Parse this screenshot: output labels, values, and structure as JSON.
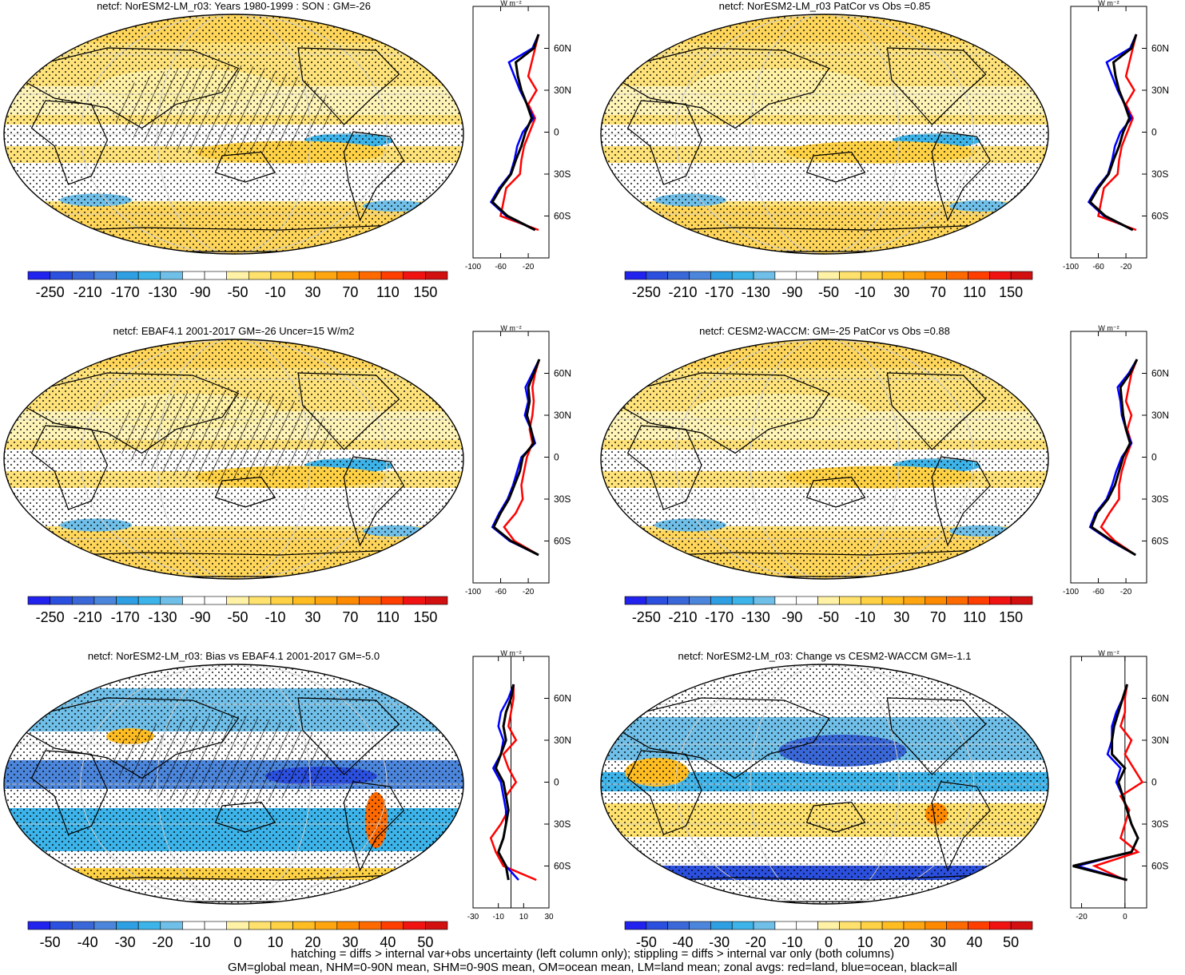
{
  "colors": {
    "land_zonal": "#ff0000",
    "ocean_zonal": "#0000ff",
    "all_zonal": "#000000",
    "coast": "#000000"
  },
  "palettes": {
    "full": [
      "#2222ee",
      "#2b4fdf",
      "#3a68d8",
      "#4c86dc",
      "#2f9fe3",
      "#3cb4ea",
      "#6fbfe8",
      "#ffffff",
      "#ffffff",
      "#fff2a6",
      "#ffe16e",
      "#ffd144",
      "#ffbd22",
      "#ffa510",
      "#ff8a00",
      "#ff6a00",
      "#ff3e00",
      "#f11212",
      "#d21010"
    ],
    "diff": [
      "#2222ee",
      "#2b4fdf",
      "#3a68d8",
      "#4c86dc",
      "#2f9fe3",
      "#3cb4ea",
      "#6fbfe8",
      "#ffffff",
      "#ffffff",
      "#fff2a6",
      "#ffe16e",
      "#ffd144",
      "#ffbd22",
      "#ffa510",
      "#ff8a00",
      "#ff6a00",
      "#ff3e00",
      "#f11212",
      "#d21010"
    ]
  },
  "panels": [
    {
      "id": "model",
      "title": "netcf: NorESM2-LM_r03: Years 1980-1999 : SON : GM=-26",
      "colorbar_labels": [
        "-250",
        "-210",
        "-170",
        "-130",
        "-90",
        "-50",
        "-10",
        "30",
        "70",
        "110",
        "150"
      ],
      "zonal_axis_ticks": [
        "-100",
        "-60",
        "-20"
      ],
      "zonal_xlim": [
        -100,
        10
      ],
      "lat_labels": [
        "60N",
        "30N",
        "0",
        "30S",
        "60S"
      ],
      "units": "W m⁻²",
      "hatched": true,
      "zonal_profiles": {
        "lat": [
          70,
          60,
          50,
          40,
          30,
          20,
          10,
          0,
          -10,
          -20,
          -30,
          -40,
          -50,
          -60,
          -70
        ],
        "all": [
          -5,
          -12,
          -38,
          -35,
          -30,
          -22,
          -15,
          -24,
          -30,
          -38,
          -45,
          -60,
          -72,
          -50,
          -10
        ],
        "ocean": [
          -5,
          -14,
          -48,
          -40,
          -32,
          -22,
          -12,
          -28,
          -36,
          -40,
          -46,
          -62,
          -74,
          -52,
          -10
        ],
        "land": [
          -5,
          -10,
          -15,
          -20,
          -8,
          -20,
          -10,
          -18,
          -26,
          -30,
          -32,
          -52,
          -56,
          -60,
          -5
        ]
      }
    },
    {
      "id": "model-right",
      "title": "netcf: NorESM2-LM_r03 PatCor vs Obs =0.85",
      "colorbar_labels": [
        "-250",
        "-210",
        "-170",
        "-130",
        "-90",
        "-50",
        "-10",
        "30",
        "70",
        "110",
        "150"
      ],
      "zonal_axis_ticks": [
        "-100",
        "-60",
        "-20"
      ],
      "zonal_xlim": [
        -100,
        10
      ],
      "lat_labels": [
        "60N",
        "30N",
        "0",
        "30S",
        "60S"
      ],
      "units": "W m⁻²",
      "hatched": false,
      "zonal_profiles": {
        "lat": [
          70,
          60,
          50,
          40,
          30,
          20,
          10,
          0,
          -10,
          -20,
          -30,
          -40,
          -50,
          -60,
          -70
        ],
        "all": [
          -5,
          -12,
          -38,
          -35,
          -30,
          -22,
          -15,
          -24,
          -30,
          -38,
          -45,
          -60,
          -72,
          -50,
          -10
        ],
        "ocean": [
          -5,
          -14,
          -48,
          -40,
          -32,
          -22,
          -12,
          -28,
          -36,
          -40,
          -46,
          -62,
          -74,
          -52,
          -10
        ],
        "land": [
          -5,
          -10,
          -15,
          -20,
          -8,
          -20,
          -10,
          -18,
          -26,
          -30,
          -32,
          -52,
          -56,
          -60,
          -5
        ]
      }
    },
    {
      "id": "obs",
      "title": "netcf: EBAF4.1 2001-2017 GM=-26 Uncer=15 W/m2",
      "colorbar_labels": [
        "-250",
        "-210",
        "-170",
        "-130",
        "-90",
        "-50",
        "-10",
        "30",
        "70",
        "110",
        "150"
      ],
      "zonal_axis_ticks": [
        "-100",
        "-60",
        "-20"
      ],
      "zonal_xlim": [
        -100,
        10
      ],
      "lat_labels": [
        "60N",
        "30N",
        "0",
        "30S",
        "60S"
      ],
      "units": "W m⁻²",
      "hatched": true,
      "zonal_profiles": {
        "lat": [
          70,
          60,
          50,
          40,
          30,
          20,
          10,
          0,
          -10,
          -20,
          -30,
          -40,
          -50,
          -60,
          -70
        ],
        "all": [
          -4,
          -12,
          -20,
          -18,
          -22,
          -16,
          -12,
          -28,
          -32,
          -40,
          -48,
          -60,
          -70,
          -45,
          -5
        ],
        "ocean": [
          -4,
          -14,
          -24,
          -20,
          -25,
          -16,
          -10,
          -30,
          -36,
          -42,
          -50,
          -62,
          -72,
          -47,
          -5
        ],
        "land": [
          -4,
          -10,
          -14,
          -12,
          -14,
          -18,
          -14,
          -22,
          -26,
          -30,
          -28,
          -38,
          -55,
          -40,
          -5
        ]
      }
    },
    {
      "id": "ref-model",
      "title": "netcf: CESM2-WACCM: GM=-25 PatCor vs Obs =0.88",
      "colorbar_labels": [
        "-250",
        "-210",
        "-170",
        "-130",
        "-90",
        "-50",
        "-10",
        "30",
        "70",
        "110",
        "150"
      ],
      "zonal_axis_ticks": [
        "-100",
        "-60",
        "-20"
      ],
      "zonal_xlim": [
        -100,
        10
      ],
      "lat_labels": [
        "60N",
        "30N",
        "0",
        "30S",
        "60S"
      ],
      "units": "W m⁻²",
      "hatched": false,
      "zonal_profiles": {
        "lat": [
          70,
          60,
          50,
          40,
          30,
          20,
          10,
          0,
          -10,
          -20,
          -30,
          -40,
          -50,
          -60,
          -70
        ],
        "all": [
          -4,
          -14,
          -28,
          -26,
          -24,
          -20,
          -14,
          -24,
          -30,
          -36,
          -46,
          -62,
          -70,
          -40,
          -6
        ],
        "ocean": [
          -4,
          -16,
          -32,
          -28,
          -26,
          -20,
          -12,
          -26,
          -34,
          -40,
          -48,
          -64,
          -72,
          -42,
          -6
        ],
        "land": [
          -4,
          -12,
          -16,
          -20,
          -12,
          -18,
          -12,
          -20,
          -26,
          -30,
          -30,
          -44,
          -56,
          -36,
          -6
        ]
      }
    },
    {
      "id": "bias",
      "title": "netcf: NorESM2-LM_r03: Bias vs EBAF4.1 2001-2017  GM=-5.0",
      "colorbar_labels": [
        "-50",
        "-40",
        "-30",
        "-20",
        "-10",
        "0",
        "10",
        "20",
        "30",
        "40",
        "50"
      ],
      "zonal_axis_ticks": [
        "-30",
        "-10",
        "10",
        "30"
      ],
      "zonal_xlim": [
        -30,
        30
      ],
      "lat_labels": [
        "60N",
        "30N",
        "0",
        "30S",
        "60S"
      ],
      "units": "W m⁻²",
      "hatched": true,
      "zonal_profiles": {
        "lat": [
          70,
          60,
          50,
          40,
          30,
          20,
          10,
          0,
          -10,
          -20,
          -30,
          -40,
          -50,
          -60,
          -70
        ],
        "all": [
          2,
          0,
          -4,
          -6,
          -4,
          -8,
          -12,
          -6,
          -4,
          -2,
          -4,
          -6,
          -10,
          -4,
          -2
        ],
        "ocean": [
          2,
          -2,
          -8,
          -10,
          -6,
          -8,
          -14,
          -8,
          -6,
          -4,
          -4,
          -6,
          -10,
          -4,
          6
        ],
        "land": [
          2,
          2,
          0,
          -2,
          4,
          -6,
          -2,
          4,
          -4,
          -2,
          -8,
          -16,
          -12,
          -6,
          20
        ]
      }
    },
    {
      "id": "change",
      "title": "netcf: NorESM2-LM_r03: Change vs CESM2-WACCM GM=-1.1",
      "colorbar_labels": [
        "-50",
        "-40",
        "-30",
        "-20",
        "-10",
        "0",
        "10",
        "20",
        "30",
        "40",
        "50"
      ],
      "zonal_axis_ticks": [
        "-20",
        "0"
      ],
      "zonal_xlim": [
        -25,
        10
      ],
      "lat_labels": [
        "60N",
        "30N",
        "0",
        "30S",
        "60S"
      ],
      "units": "W m⁻²",
      "hatched": false,
      "zonal_profiles": {
        "lat": [
          70,
          60,
          50,
          40,
          30,
          20,
          10,
          0,
          -10,
          -20,
          -30,
          -40,
          -50,
          -60,
          -70
        ],
        "all": [
          1,
          -1,
          -3,
          -5,
          -6,
          -6,
          0,
          -3,
          -1,
          1,
          3,
          6,
          3,
          -24,
          1
        ],
        "ocean": [
          1,
          -1,
          -4,
          -6,
          -6,
          -8,
          -2,
          -4,
          -1,
          1,
          3,
          6,
          3,
          -22,
          1
        ],
        "land": [
          1,
          0,
          0,
          -2,
          3,
          0,
          4,
          8,
          -2,
          2,
          0,
          -2,
          6,
          -14,
          0
        ]
      }
    }
  ],
  "footer": {
    "line1": "hatching = diffs > internal var+obs uncertainty (left column only); stippling = diffs > internal var only (both columns)",
    "line2": "GM=global mean, NHM=0-90N mean, SHM=0-90S mean, OM=ocean mean, LM=land mean; zonal avgs: red=land, blue=ocean, black=all"
  }
}
